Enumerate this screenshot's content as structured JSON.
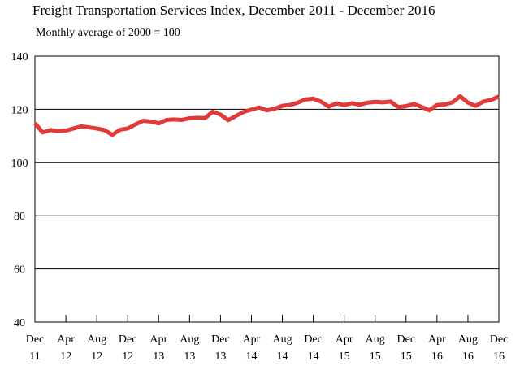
{
  "chart_data": {
    "type": "line",
    "title": "Freight Transportation Services Index, December 2011 - December 2016",
    "subtitle": "Monthly average of 2000 = 100",
    "xlabel": "",
    "ylabel": "",
    "ylim": [
      40,
      140
    ],
    "yticks": [
      40,
      60,
      80,
      100,
      120,
      140
    ],
    "grid": true,
    "x_ticks": [
      {
        "index": 0,
        "top": "Dec",
        "bottom": "11"
      },
      {
        "index": 4,
        "top": "Apr",
        "bottom": "12"
      },
      {
        "index": 8,
        "top": "Aug",
        "bottom": "12"
      },
      {
        "index": 12,
        "top": "Dec",
        "bottom": "12"
      },
      {
        "index": 16,
        "top": "Apr",
        "bottom": "13"
      },
      {
        "index": 20,
        "top": "Aug",
        "bottom": "13"
      },
      {
        "index": 24,
        "top": "Dec",
        "bottom": "13"
      },
      {
        "index": 28,
        "top": "Apr",
        "bottom": "14"
      },
      {
        "index": 32,
        "top": "Aug",
        "bottom": "14"
      },
      {
        "index": 36,
        "top": "Dec",
        "bottom": "14"
      },
      {
        "index": 40,
        "top": "Apr",
        "bottom": "15"
      },
      {
        "index": 44,
        "top": "Aug",
        "bottom": "15"
      },
      {
        "index": 48,
        "top": "Dec",
        "bottom": "15"
      },
      {
        "index": 52,
        "top": "Apr",
        "bottom": "16"
      },
      {
        "index": 56,
        "top": "Aug",
        "bottom": "16"
      },
      {
        "index": 60,
        "top": "Dec",
        "bottom": "16"
      }
    ],
    "series": [
      {
        "color": "#e03a3a",
        "values": [
          114.8,
          111.3,
          112.2,
          111.8,
          112.0,
          112.8,
          113.6,
          113.2,
          112.8,
          112.2,
          110.4,
          112.3,
          112.8,
          114.3,
          115.7,
          115.4,
          114.7,
          116.0,
          116.2,
          116.0,
          116.6,
          116.8,
          116.7,
          119.1,
          118.0,
          115.9,
          117.5,
          119.0,
          119.9,
          120.7,
          119.6,
          120.2,
          121.3,
          121.6,
          122.5,
          123.7,
          124.0,
          122.9,
          121.0,
          122.2,
          121.6,
          122.3,
          121.7,
          122.5,
          122.8,
          122.6,
          122.9,
          120.8,
          121.2,
          122.0,
          120.9,
          119.6,
          121.6,
          121.8,
          122.6,
          124.9,
          122.5,
          121.3,
          122.9,
          123.5,
          124.8
        ]
      }
    ]
  }
}
